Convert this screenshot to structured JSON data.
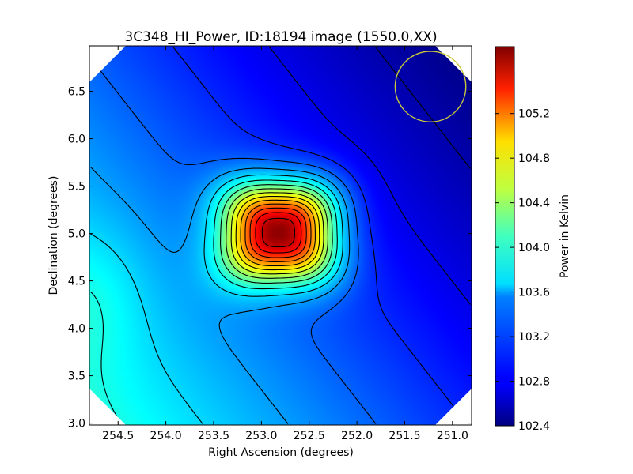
{
  "chart_data": {
    "type": "heatmap",
    "title": "3C348_HI_Power, ID:18194 image (1550.0,XX)",
    "xlabel": "Right Ascension (degrees)",
    "ylabel": "Declination (degrees)",
    "xlim": [
      254.8,
      250.8
    ],
    "ylim": [
      2.98,
      6.98
    ],
    "x_ticks": [
      254.5,
      254.0,
      253.5,
      253.0,
      252.5,
      252.0,
      251.5,
      251.0
    ],
    "x_tick_labels": [
      "254.5",
      "254.0",
      "253.5",
      "253.0",
      "252.5",
      "252.0",
      "251.5",
      "251.0"
    ],
    "y_ticks": [
      3.0,
      3.5,
      4.0,
      4.5,
      5.0,
      5.5,
      6.0,
      6.5
    ],
    "y_tick_labels": [
      "3.0",
      "3.5",
      "4.0",
      "4.5",
      "5.0",
      "5.5",
      "6.0",
      "6.5"
    ],
    "colormap": "jet",
    "colorbar": {
      "label": "Power in Kelvin",
      "range": [
        102.4,
        105.8
      ],
      "ticks": [
        102.4,
        102.8,
        103.2,
        103.6,
        104.0,
        104.4,
        104.8,
        105.2
      ],
      "tick_labels": [
        "102.4",
        "102.8",
        "103.2",
        "103.6",
        "104.0",
        "104.4",
        "104.8",
        "105.2"
      ]
    },
    "peak": {
      "ra": 252.82,
      "dec": 5.01,
      "value": 105.75
    },
    "background": {
      "value_min": 102.45,
      "value_max": 103.75
    },
    "contour_color": "#000000",
    "beam_circle": {
      "ra": 251.23,
      "dec": 6.55,
      "radius_deg": 0.37,
      "color": "#c8c83c"
    },
    "grid": false
  }
}
